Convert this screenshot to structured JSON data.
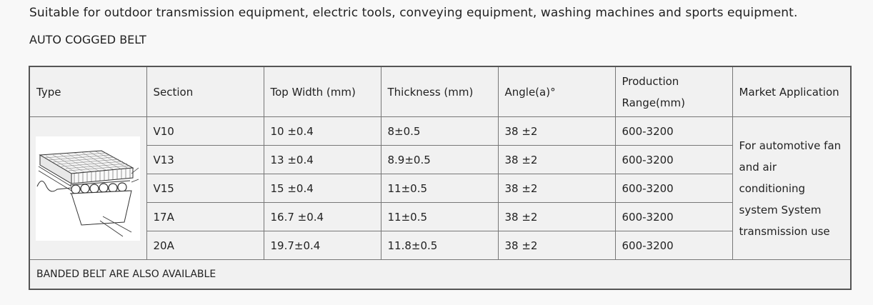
{
  "intro_text": "Suitable for outdoor transmission equipment, electric tools, conveying equipment, washing machines and sports equipment.",
  "subtitle": "AUTO COGGED BELT",
  "table": {
    "headers": {
      "type": "Type",
      "section": "Section",
      "top_width": "Top Width (mm)",
      "thickness": "Thickness (mm)",
      "angle": "Angle(a)°",
      "production_range": "Production Range(mm)",
      "market_application": "Market Application"
    },
    "rows": [
      {
        "section": "V10",
        "top_width": "10 ±0.4",
        "thickness": "8±0.5",
        "angle": "38 ±2",
        "production_range": "600-3200"
      },
      {
        "section": "V13",
        "top_width": "13 ±0.4",
        "thickness": "8.9±0.5",
        "angle": "38 ±2",
        "production_range": "600-3200"
      },
      {
        "section": "V15",
        "top_width": "15 ±0.4",
        "thickness": "11±0.5",
        "angle": "38 ±2",
        "production_range": "600-3200"
      },
      {
        "section": "17A",
        "top_width": "16.7 ±0.4",
        "thickness": "11±0.5",
        "angle": "38 ±2",
        "production_range": "600-3200"
      },
      {
        "section": "20A",
        "top_width": "19.7±0.4",
        "thickness": "11.8±0.5",
        "angle": "38 ±2",
        "production_range": "600-3200"
      }
    ],
    "market_application": "For automotive fan and air conditioning system System transmission use",
    "footer": "BANDED BELT ARE ALSO AVAILABLE"
  }
}
